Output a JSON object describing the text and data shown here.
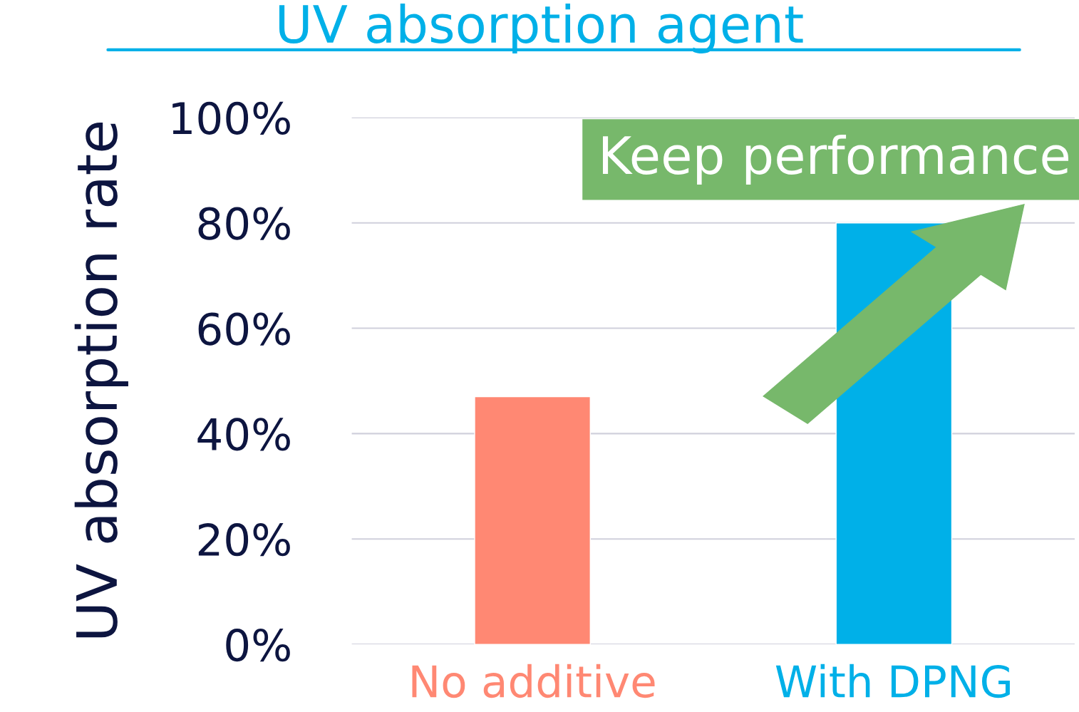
{
  "chart_data": {
    "type": "bar",
    "title": "UV absorption agent",
    "ylabel": "UV absorption rate",
    "categories": [
      "No additive",
      "With DPNG"
    ],
    "values": [
      47,
      80
    ],
    "colors": [
      "#ff8873",
      "#00b0e8"
    ],
    "ylim": [
      0,
      100
    ],
    "yticks": [
      {
        "value": 0,
        "label": "0%"
      },
      {
        "value": 20,
        "label": "20%"
      },
      {
        "value": 40,
        "label": "40%"
      },
      {
        "value": 60,
        "label": "60%"
      },
      {
        "value": 80,
        "label": "80%"
      },
      {
        "value": 100,
        "label": "100%"
      }
    ],
    "grid": "y",
    "legend": false,
    "annotations": [
      "Keep performance"
    ]
  }
}
